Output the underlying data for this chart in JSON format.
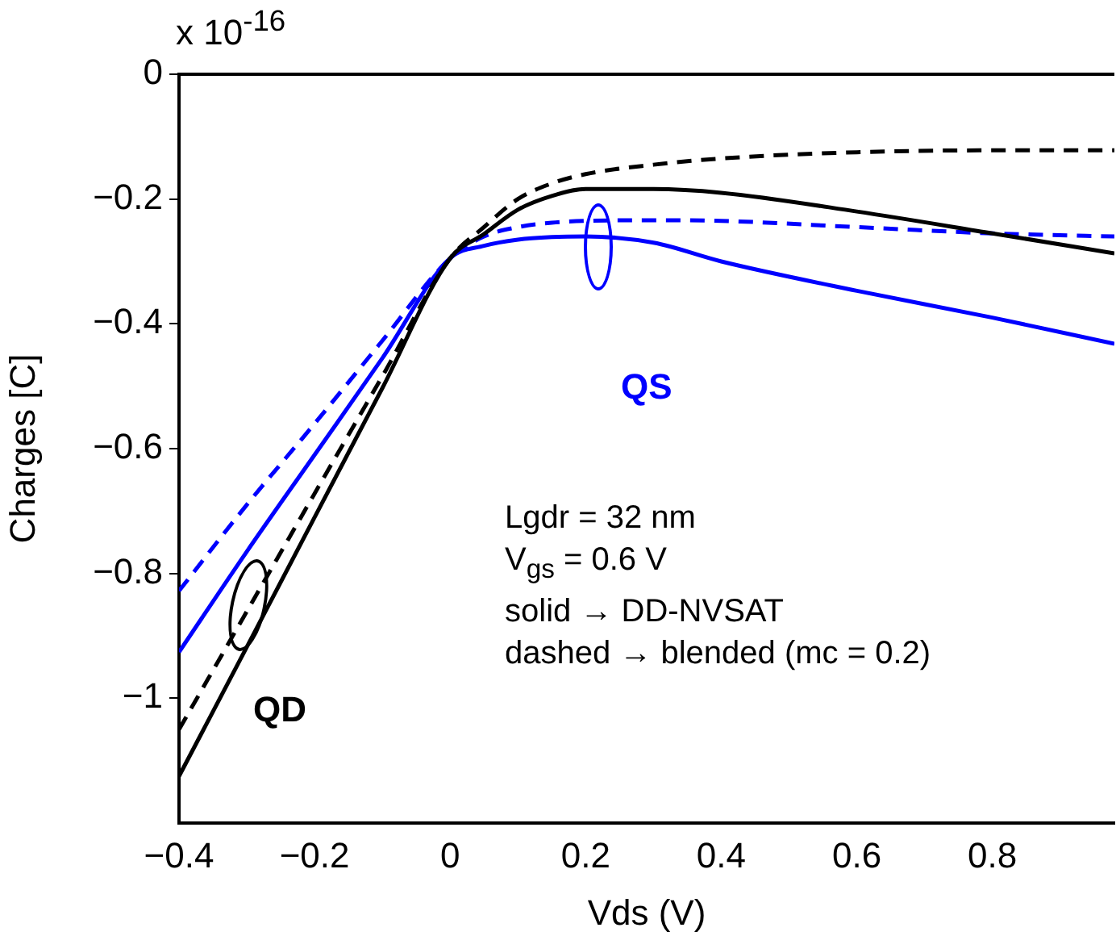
{
  "chart_data": {
    "type": "line",
    "xlabel": "Vds (V)",
    "ylabel": "Charges [C]",
    "xlim": [
      -0.4,
      0.98
    ],
    "ylim": [
      -1.2,
      0
    ],
    "xticks": [
      {
        "value": -0.4,
        "label": "−0.4"
      },
      {
        "value": -0.2,
        "label": "−0.2"
      },
      0,
      0.2,
      0.4,
      0.6,
      0.8
    ],
    "yticks": [
      {
        "value": -1,
        "label": "−1"
      },
      {
        "value": -0.8,
        "label": "−0.8"
      },
      {
        "value": -0.6,
        "label": "−0.6"
      },
      {
        "value": -0.4,
        "label": "−0.4"
      },
      {
        "value": -0.2,
        "label": "−0.2"
      },
      0
    ],
    "grid": false,
    "legend": false,
    "marker": "none",
    "x": [
      -0.4,
      -0.3,
      -0.2,
      -0.1,
      0,
      0.05,
      0.1,
      0.15,
      0.2,
      0.3,
      0.4,
      0.6,
      0.8,
      0.98
    ],
    "series": [
      {
        "color": "#000000",
        "line_style": "solid",
        "values": [
          -1.125,
          -0.918,
          -0.71,
          -0.503,
          -0.295,
          -0.256,
          -0.217,
          -0.195,
          -0.184,
          -0.184,
          -0.19,
          -0.22,
          -0.255,
          -0.287
        ]
      },
      {
        "color": "#000000",
        "line_style": "dashed",
        "values": [
          -1.05,
          -0.861,
          -0.672,
          -0.484,
          -0.295,
          -0.245,
          -0.2,
          -0.175,
          -0.16,
          -0.145,
          -0.135,
          -0.125,
          -0.122,
          -0.122
        ]
      },
      {
        "color": "#0000ff",
        "line_style": "solid",
        "values": [
          -0.926,
          -0.765,
          -0.61,
          -0.455,
          -0.295,
          -0.275,
          -0.265,
          -0.261,
          -0.26,
          -0.27,
          -0.3,
          -0.347,
          -0.39,
          -0.432
        ]
      },
      {
        "color": "#0000ff",
        "line_style": "dashed",
        "values": [
          -0.828,
          -0.69,
          -0.56,
          -0.427,
          -0.295,
          -0.26,
          -0.245,
          -0.238,
          -0.235,
          -0.234,
          -0.235,
          -0.245,
          -0.255,
          -0.26
        ]
      }
    ],
    "annotations": [
      "x 10$^{-16}$",
      "Lgdr = 32 nm",
      "V$_{gs}$ = 0.6 V",
      "solid → DD-NVSAT",
      "dashed → blended (mc = 0.2)",
      "QS",
      "QD"
    ]
  }
}
